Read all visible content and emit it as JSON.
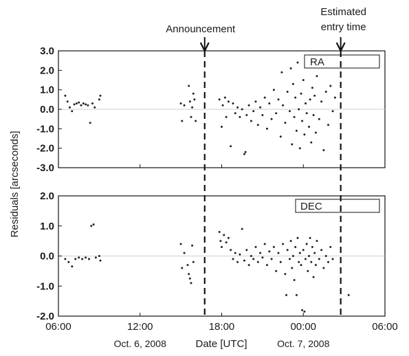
{
  "chart_data": [
    {
      "type": "scatter",
      "panel": "RA",
      "legend": "RA",
      "ylim": [
        -3.0,
        3.0
      ],
      "yticks": [
        "3.0",
        "2.0",
        "1.0",
        "0.0",
        "-1.0",
        "-2.0",
        "-3.0"
      ],
      "ytick_values": [
        3,
        2,
        1,
        0,
        -1,
        -2,
        -3
      ],
      "xlim": [
        "2008-10-06T06:00",
        "2008-10-07T06:00"
      ],
      "grid": false,
      "points": [
        {
          "x": "2008-10-06T06:30",
          "y": 0.7
        },
        {
          "x": "2008-10-06T06:40",
          "y": 0.4
        },
        {
          "x": "2008-10-06T06:50",
          "y": 0.1
        },
        {
          "x": "2008-10-06T07:00",
          "y": -0.1
        },
        {
          "x": "2008-10-06T07:10",
          "y": 0.25
        },
        {
          "x": "2008-10-06T07:20",
          "y": 0.3
        },
        {
          "x": "2008-10-06T07:30",
          "y": 0.35
        },
        {
          "x": "2008-10-06T07:40",
          "y": 0.2
        },
        {
          "x": "2008-10-06T07:50",
          "y": 0.3
        },
        {
          "x": "2008-10-06T08:00",
          "y": 0.25
        },
        {
          "x": "2008-10-06T08:10",
          "y": 0.2
        },
        {
          "x": "2008-10-06T08:20",
          "y": -0.7
        },
        {
          "x": "2008-10-06T08:30",
          "y": 0.3
        },
        {
          "x": "2008-10-06T08:40",
          "y": 0.1
        },
        {
          "x": "2008-10-06T09:00",
          "y": 0.5
        },
        {
          "x": "2008-10-06T09:05",
          "y": 0.7
        },
        {
          "x": "2008-10-06T15:00",
          "y": 0.3
        },
        {
          "x": "2008-10-06T15:05",
          "y": -0.6
        },
        {
          "x": "2008-10-06T15:15",
          "y": 0.2
        },
        {
          "x": "2008-10-06T15:35",
          "y": 1.2
        },
        {
          "x": "2008-10-06T15:40",
          "y": 0.4
        },
        {
          "x": "2008-10-06T15:45",
          "y": -0.4
        },
        {
          "x": "2008-10-06T15:50",
          "y": 0.1
        },
        {
          "x": "2008-10-06T15:55",
          "y": 0.8
        },
        {
          "x": "2008-10-06T16:00",
          "y": 0.5
        },
        {
          "x": "2008-10-06T16:05",
          "y": -0.6
        },
        {
          "x": "2008-10-06T17:50",
          "y": 0.5
        },
        {
          "x": "2008-10-06T18:00",
          "y": -0.9
        },
        {
          "x": "2008-10-06T18:05",
          "y": 0.2
        },
        {
          "x": "2008-10-06T18:15",
          "y": 0.6
        },
        {
          "x": "2008-10-06T18:20",
          "y": -0.4
        },
        {
          "x": "2008-10-06T18:30",
          "y": 0.4
        },
        {
          "x": "2008-10-06T18:40",
          "y": -1.9
        },
        {
          "x": "2008-10-06T18:50",
          "y": 0.3
        },
        {
          "x": "2008-10-06T19:00",
          "y": -0.2
        },
        {
          "x": "2008-10-06T19:10",
          "y": 0.1
        },
        {
          "x": "2008-10-06T19:20",
          "y": -0.4
        },
        {
          "x": "2008-10-06T19:30",
          "y": 0.0
        },
        {
          "x": "2008-10-06T19:40",
          "y": -2.3
        },
        {
          "x": "2008-10-06T19:45",
          "y": -2.2
        },
        {
          "x": "2008-10-06T19:50",
          "y": -0.3
        },
        {
          "x": "2008-10-06T20:00",
          "y": 0.2
        },
        {
          "x": "2008-10-06T20:10",
          "y": -0.6
        },
        {
          "x": "2008-10-06T20:20",
          "y": -0.1
        },
        {
          "x": "2008-10-06T20:30",
          "y": 0.4
        },
        {
          "x": "2008-10-06T20:40",
          "y": -0.8
        },
        {
          "x": "2008-10-06T20:50",
          "y": 0.1
        },
        {
          "x": "2008-10-06T21:00",
          "y": -0.3
        },
        {
          "x": "2008-10-06T21:10",
          "y": 0.6
        },
        {
          "x": "2008-10-06T21:20",
          "y": -1.0
        },
        {
          "x": "2008-10-06T21:30",
          "y": 0.3
        },
        {
          "x": "2008-10-06T21:40",
          "y": -0.5
        },
        {
          "x": "2008-10-06T21:50",
          "y": 1.0
        },
        {
          "x": "2008-10-06T22:00",
          "y": -0.2
        },
        {
          "x": "2008-10-06T22:10",
          "y": 0.5
        },
        {
          "x": "2008-10-06T22:20",
          "y": -1.4
        },
        {
          "x": "2008-10-06T22:25",
          "y": 1.9
        },
        {
          "x": "2008-10-06T22:30",
          "y": 0.2
        },
        {
          "x": "2008-10-06T22:40",
          "y": -0.7
        },
        {
          "x": "2008-10-06T22:50",
          "y": 0.9
        },
        {
          "x": "2008-10-06T23:00",
          "y": -0.1
        },
        {
          "x": "2008-10-06T23:05",
          "y": 2.1
        },
        {
          "x": "2008-10-06T23:10",
          "y": -1.8
        },
        {
          "x": "2008-10-06T23:15",
          "y": 1.3
        },
        {
          "x": "2008-10-06T23:20",
          "y": -0.4
        },
        {
          "x": "2008-10-06T23:25",
          "y": 0.6
        },
        {
          "x": "2008-10-06T23:30",
          "y": -1.1
        },
        {
          "x": "2008-10-06T23:35",
          "y": 2.4
        },
        {
          "x": "2008-10-06T23:40",
          "y": 0.0
        },
        {
          "x": "2008-10-06T23:45",
          "y": -2.0
        },
        {
          "x": "2008-10-06T23:50",
          "y": 0.8
        },
        {
          "x": "2008-10-06T23:55",
          "y": -0.6
        },
        {
          "x": "2008-10-07T00:00",
          "y": 1.5
        },
        {
          "x": "2008-10-07T00:05",
          "y": -1.3
        },
        {
          "x": "2008-10-07T00:10",
          "y": 0.3
        },
        {
          "x": "2008-10-07T00:15",
          "y": -0.2
        },
        {
          "x": "2008-10-07T00:20",
          "y": 2.3
        },
        {
          "x": "2008-10-07T00:25",
          "y": -0.9
        },
        {
          "x": "2008-10-07T00:30",
          "y": 0.5
        },
        {
          "x": "2008-10-07T00:35",
          "y": -1.7
        },
        {
          "x": "2008-10-07T00:40",
          "y": 1.1
        },
        {
          "x": "2008-10-07T00:45",
          "y": -0.3
        },
        {
          "x": "2008-10-07T00:50",
          "y": 0.7
        },
        {
          "x": "2008-10-07T00:55",
          "y": -1.2
        },
        {
          "x": "2008-10-07T01:00",
          "y": 1.7
        },
        {
          "x": "2008-10-07T01:10",
          "y": -0.5
        },
        {
          "x": "2008-10-07T01:20",
          "y": 0.4
        },
        {
          "x": "2008-10-07T01:30",
          "y": -2.1
        },
        {
          "x": "2008-10-07T01:40",
          "y": 0.9
        },
        {
          "x": "2008-10-07T01:50",
          "y": -0.8
        },
        {
          "x": "2008-10-07T02:00",
          "y": 1.2
        },
        {
          "x": "2008-10-07T02:10",
          "y": -0.1
        },
        {
          "x": "2008-10-07T02:20",
          "y": 0.6
        },
        {
          "x": "2008-10-07T03:10",
          "y": 2.4
        }
      ]
    },
    {
      "type": "scatter",
      "panel": "DEC",
      "legend": "DEC",
      "xlabel": "Date [UTC]",
      "ylim": [
        -2.0,
        2.0
      ],
      "yticks": [
        "2.0",
        "1.0",
        "0.0",
        "-1.0",
        "-2.0"
      ],
      "ytick_values": [
        2,
        1,
        0,
        -1,
        -2
      ],
      "xlim": [
        "2008-10-06T06:00",
        "2008-10-07T06:00"
      ],
      "xticks": [
        "06:00",
        "12:00",
        "18:00",
        "00:00",
        "06:00"
      ],
      "xtick_values": [
        "2008-10-06T06:00",
        "2008-10-06T12:00",
        "2008-10-06T18:00",
        "2008-10-07T00:00",
        "2008-10-07T06:00"
      ],
      "date_labels": [
        {
          "text": "Oct. 6, 2008",
          "x": "2008-10-06T12:00"
        },
        {
          "text": "Oct. 7, 2008",
          "x": "2008-10-07T00:00"
        }
      ],
      "grid": false,
      "points": [
        {
          "x": "2008-10-06T06:30",
          "y": -0.1
        },
        {
          "x": "2008-10-06T06:45",
          "y": -0.2
        },
        {
          "x": "2008-10-06T07:00",
          "y": -0.35
        },
        {
          "x": "2008-10-06T07:15",
          "y": -0.1
        },
        {
          "x": "2008-10-06T07:30",
          "y": -0.05
        },
        {
          "x": "2008-10-06T07:45",
          "y": -0.1
        },
        {
          "x": "2008-10-06T08:00",
          "y": -0.05
        },
        {
          "x": "2008-10-06T08:15",
          "y": -0.1
        },
        {
          "x": "2008-10-06T08:25",
          "y": 1.0
        },
        {
          "x": "2008-10-06T08:35",
          "y": 1.05
        },
        {
          "x": "2008-10-06T08:45",
          "y": -0.05
        },
        {
          "x": "2008-10-06T09:00",
          "y": 0.0
        },
        {
          "x": "2008-10-06T09:05",
          "y": -0.15
        },
        {
          "x": "2008-10-06T15:00",
          "y": 0.4
        },
        {
          "x": "2008-10-06T15:05",
          "y": -0.4
        },
        {
          "x": "2008-10-06T15:15",
          "y": 0.1
        },
        {
          "x": "2008-10-06T15:30",
          "y": -0.3
        },
        {
          "x": "2008-10-06T15:35",
          "y": -0.6
        },
        {
          "x": "2008-10-06T15:40",
          "y": -0.75
        },
        {
          "x": "2008-10-06T15:45",
          "y": -0.9
        },
        {
          "x": "2008-10-06T15:50",
          "y": 0.35
        },
        {
          "x": "2008-10-06T15:55",
          "y": -0.2
        },
        {
          "x": "2008-10-06T17:50",
          "y": 0.8
        },
        {
          "x": "2008-10-06T17:55",
          "y": 0.5
        },
        {
          "x": "2008-10-06T18:00",
          "y": 0.3
        },
        {
          "x": "2008-10-06T18:10",
          "y": 0.7
        },
        {
          "x": "2008-10-06T18:20",
          "y": 0.45
        },
        {
          "x": "2008-10-06T18:30",
          "y": 0.6
        },
        {
          "x": "2008-10-06T18:40",
          "y": 0.2
        },
        {
          "x": "2008-10-06T18:50",
          "y": -0.1
        },
        {
          "x": "2008-10-06T19:00",
          "y": 0.1
        },
        {
          "x": "2008-10-06T19:10",
          "y": -0.2
        },
        {
          "x": "2008-10-06T19:20",
          "y": 0.05
        },
        {
          "x": "2008-10-06T19:30",
          "y": 0.9
        },
        {
          "x": "2008-10-06T19:40",
          "y": -0.15
        },
        {
          "x": "2008-10-06T19:50",
          "y": 0.2
        },
        {
          "x": "2008-10-06T20:00",
          "y": -0.3
        },
        {
          "x": "2008-10-06T20:10",
          "y": 0.0
        },
        {
          "x": "2008-10-06T20:20",
          "y": -0.1
        },
        {
          "x": "2008-10-06T20:30",
          "y": 0.3
        },
        {
          "x": "2008-10-06T20:40",
          "y": -0.2
        },
        {
          "x": "2008-10-06T20:50",
          "y": 0.1
        },
        {
          "x": "2008-10-06T21:00",
          "y": -0.05
        },
        {
          "x": "2008-10-06T21:10",
          "y": 0.4
        },
        {
          "x": "2008-10-06T21:20",
          "y": -0.3
        },
        {
          "x": "2008-10-06T21:30",
          "y": 0.15
        },
        {
          "x": "2008-10-06T21:40",
          "y": -0.1
        },
        {
          "x": "2008-10-06T21:50",
          "y": 0.3
        },
        {
          "x": "2008-10-06T22:00",
          "y": -0.5
        },
        {
          "x": "2008-10-06T22:10",
          "y": 0.1
        },
        {
          "x": "2008-10-06T22:20",
          "y": -0.2
        },
        {
          "x": "2008-10-06T22:30",
          "y": 0.4
        },
        {
          "x": "2008-10-06T22:40",
          "y": -0.6
        },
        {
          "x": "2008-10-06T22:45",
          "y": -1.3
        },
        {
          "x": "2008-10-06T22:50",
          "y": 0.2
        },
        {
          "x": "2008-10-06T23:00",
          "y": -0.1
        },
        {
          "x": "2008-10-06T23:05",
          "y": 0.5
        },
        {
          "x": "2008-10-06T23:10",
          "y": -0.4
        },
        {
          "x": "2008-10-06T23:15",
          "y": 0.0
        },
        {
          "x": "2008-10-06T23:20",
          "y": -0.8
        },
        {
          "x": "2008-10-06T23:25",
          "y": 0.3
        },
        {
          "x": "2008-10-06T23:30",
          "y": -1.3
        },
        {
          "x": "2008-10-06T23:35",
          "y": 0.6
        },
        {
          "x": "2008-10-06T23:40",
          "y": -0.2
        },
        {
          "x": "2008-10-06T23:45",
          "y": 0.1
        },
        {
          "x": "2008-10-06T23:50",
          "y": -0.3
        },
        {
          "x": "2008-10-06T23:55",
          "y": -1.8
        },
        {
          "x": "2008-10-07T00:00",
          "y": 0.2
        },
        {
          "x": "2008-10-07T00:05",
          "y": -1.85
        },
        {
          "x": "2008-10-07T00:10",
          "y": -0.1
        },
        {
          "x": "2008-10-07T00:15",
          "y": 0.4
        },
        {
          "x": "2008-10-07T00:20",
          "y": -0.5
        },
        {
          "x": "2008-10-07T00:25",
          "y": 0.0
        },
        {
          "x": "2008-10-07T00:30",
          "y": 0.6
        },
        {
          "x": "2008-10-07T00:35",
          "y": -0.2
        },
        {
          "x": "2008-10-07T00:40",
          "y": 0.3
        },
        {
          "x": "2008-10-07T00:45",
          "y": -0.7
        },
        {
          "x": "2008-10-07T00:50",
          "y": 0.1
        },
        {
          "x": "2008-10-07T00:55",
          "y": -0.3
        },
        {
          "x": "2008-10-07T01:00",
          "y": 0.5
        },
        {
          "x": "2008-10-07T01:10",
          "y": -0.1
        },
        {
          "x": "2008-10-07T01:20",
          "y": 0.2
        },
        {
          "x": "2008-10-07T01:30",
          "y": -0.4
        },
        {
          "x": "2008-10-07T01:40",
          "y": 0.0
        },
        {
          "x": "2008-10-07T01:50",
          "y": -0.2
        },
        {
          "x": "2008-10-07T02:00",
          "y": 0.3
        },
        {
          "x": "2008-10-07T02:10",
          "y": -0.1
        },
        {
          "x": "2008-10-07T03:10",
          "y": 1.5
        },
        {
          "x": "2008-10-07T03:20",
          "y": -1.3
        }
      ]
    }
  ],
  "shared": {
    "ylabel": "Residuals [arcseconds]",
    "markers": [
      {
        "label": "Announcement",
        "x": "2008-10-06T16:45"
      },
      {
        "label_lines": [
          "Estimated",
          "entry time"
        ],
        "x": "2008-10-07T02:45"
      }
    ]
  },
  "colors": {
    "points": "#222222",
    "axes": "#111111",
    "zero_line": "#cfcfcf"
  }
}
